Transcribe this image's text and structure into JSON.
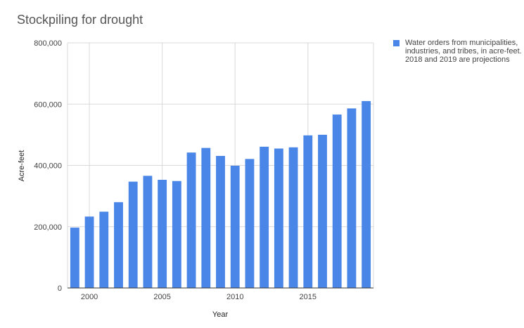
{
  "chart_data": {
    "type": "bar",
    "title": "Stockpiling for drought",
    "xlabel": "Year",
    "ylabel": "Acre-feet",
    "x": [
      1999,
      2000,
      2001,
      2002,
      2003,
      2004,
      2005,
      2006,
      2007,
      2008,
      2009,
      2010,
      2011,
      2012,
      2013,
      2014,
      2015,
      2016,
      2017,
      2018,
      2019
    ],
    "series": [
      {
        "name": "Water orders from municipalities, industries, and tribes, in acre-feet. 2018 and 2019 are projections",
        "color": "#4a86e8",
        "values": [
          197000,
          233000,
          249000,
          280000,
          347000,
          366000,
          353000,
          349000,
          442000,
          457000,
          431000,
          399000,
          421000,
          461000,
          455000,
          459000,
          498000,
          500000,
          566000,
          586000,
          610000
        ]
      }
    ],
    "ylim": [
      0,
      800000
    ],
    "xticks": [
      2000,
      2005,
      2010,
      2015
    ],
    "xtick_labels": [
      "2000",
      "2005",
      "2010",
      "2015"
    ],
    "yticks": [
      0,
      200000,
      400000,
      600000,
      800000
    ],
    "ytick_labels": [
      "0",
      "200,000",
      "400,000",
      "600,000",
      "800,000"
    ],
    "grid": true,
    "legend_position": "right"
  }
}
